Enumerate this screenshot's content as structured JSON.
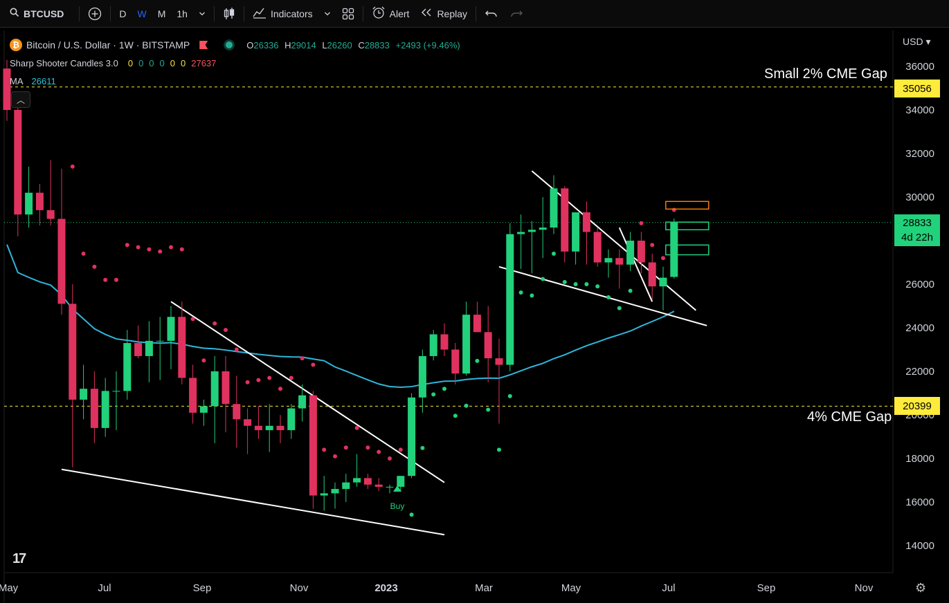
{
  "toolbar": {
    "symbol": "BTCUSD",
    "intervals": [
      "D",
      "W",
      "M",
      "1h"
    ],
    "active_interval": "W",
    "indicators_label": "Indicators",
    "alert_label": "Alert",
    "replay_label": "Replay"
  },
  "legend": {
    "title": "Bitcoin / U.S. Dollar · 1W · BITSTAMP",
    "ohlc": {
      "o_label": "O",
      "o": "26336",
      "h_label": "H",
      "h": "29014",
      "l_label": "L",
      "l": "26260",
      "c_label": "C",
      "c": "28833",
      "chg": "+2493 (+9.46%)"
    },
    "indicator1_name": "Sharp Shooter Candles 3.0",
    "indicator1_values": [
      "0",
      "0",
      "0",
      "0",
      "0",
      "0"
    ],
    "indicator1_last": "27637",
    "ma_label": "MA",
    "ma_value": "26611"
  },
  "price_axis": {
    "currency": "USD",
    "ticks": [
      "36000",
      "34000",
      "32000",
      "30000",
      "28000",
      "26000",
      "24000",
      "22000",
      "20000",
      "18000",
      "16000",
      "14000"
    ]
  },
  "time_axis": {
    "ticks": [
      "May",
      "Jul",
      "Sep",
      "Nov",
      "2023",
      "Mar",
      "May",
      "Jul",
      "Sep",
      "Nov"
    ]
  },
  "annotations": {
    "upper_gap_label": "Small 2% CME Gap",
    "upper_gap_price": "35056",
    "lower_gap_label": "4% CME Gap",
    "lower_gap_price": "20399",
    "current_price": "28833",
    "countdown": "4d 22h",
    "buy_label": "Buy"
  },
  "colors": {
    "up": "#22d17b",
    "down": "#e0325f",
    "ma": "#2fb7dc",
    "gap_tag": "#ffeb3b",
    "trendline": "#ffffff"
  },
  "chart_data": {
    "type": "candlestick",
    "interval": "1W",
    "ylim": [
      13000,
      37000
    ],
    "candles": [
      [
        35900,
        36300,
        33500,
        34000
      ],
      [
        34000,
        34100,
        28200,
        29200
      ],
      [
        29200,
        31400,
        28600,
        30200
      ],
      [
        30200,
        30600,
        28700,
        29400
      ],
      [
        29400,
        31700,
        28700,
        29000
      ],
      [
        29000,
        31300,
        24600,
        25100
      ],
      [
        25100,
        26000,
        17600,
        20700
      ],
      [
        20700,
        22300,
        19800,
        21200
      ],
      [
        21200,
        22000,
        18700,
        19400
      ],
      [
        19400,
        21700,
        19000,
        21100
      ],
      [
        21100,
        22000,
        19300,
        21100
      ],
      [
        21100,
        23900,
        20700,
        23300
      ],
      [
        23300,
        24100,
        22600,
        22700
      ],
      [
        22700,
        24300,
        21500,
        23400
      ],
      [
        23400,
        24500,
        21600,
        23400
      ],
      [
        23400,
        25000,
        22100,
        24500
      ],
      [
        24500,
        25200,
        21400,
        21700
      ],
      [
        21700,
        22300,
        19600,
        20100
      ],
      [
        20100,
        20700,
        19500,
        20400
      ],
      [
        20400,
        22700,
        18700,
        22000
      ],
      [
        22000,
        22700,
        19200,
        20500
      ],
      [
        20500,
        21800,
        18500,
        19800
      ],
      [
        19800,
        20300,
        18200,
        19500
      ],
      [
        19500,
        20400,
        18900,
        19300
      ],
      [
        19300,
        20500,
        18300,
        19500
      ],
      [
        19500,
        20000,
        18700,
        19300
      ],
      [
        19300,
        20500,
        18900,
        20300
      ],
      [
        20300,
        21400,
        19700,
        20900
      ],
      [
        20900,
        21100,
        15700,
        16300
      ],
      [
        16300,
        17200,
        15600,
        16400
      ],
      [
        16400,
        16900,
        15700,
        16600
      ],
      [
        16600,
        17300,
        16000,
        16900
      ],
      [
        16900,
        18200,
        16700,
        17100
      ],
      [
        17100,
        17300,
        16600,
        16800
      ],
      [
        16800,
        17100,
        16500,
        16700
      ],
      [
        16700,
        16800,
        16400,
        16700
      ],
      [
        16700,
        17200,
        16500,
        17200
      ],
      [
        17200,
        21000,
        17100,
        20800
      ],
      [
        20800,
        23000,
        20100,
        22700
      ],
      [
        22700,
        23900,
        22500,
        23700
      ],
      [
        23700,
        24200,
        22700,
        23000
      ],
      [
        23000,
        23300,
        21400,
        21900
      ],
      [
        21900,
        25200,
        21800,
        24600
      ],
      [
        24600,
        25200,
        23800,
        23800
      ],
      [
        23800,
        25000,
        21500,
        22600
      ],
      [
        22600,
        23500,
        19600,
        22300
      ],
      [
        22300,
        28800,
        22000,
        28300
      ],
      [
        28300,
        29200,
        26700,
        28400
      ],
      [
        28400,
        28900,
        26500,
        28500
      ],
      [
        28500,
        30000,
        27200,
        28600
      ],
      [
        28600,
        31000,
        28300,
        30400
      ],
      [
        30400,
        30500,
        27000,
        27500
      ],
      [
        27500,
        29300,
        26900,
        29300
      ],
      [
        29300,
        29800,
        26900,
        28400
      ],
      [
        28400,
        28600,
        26800,
        27000
      ],
      [
        27000,
        27600,
        26300,
        27200
      ],
      [
        27200,
        27600,
        25800,
        26900
      ],
      [
        26900,
        28400,
        26600,
        28000
      ],
      [
        28000,
        28400,
        26500,
        27000
      ],
      [
        27000,
        27400,
        25300,
        25900
      ],
      [
        25900,
        26800,
        24800,
        26300
      ],
      [
        26336,
        29014,
        26260,
        28833
      ]
    ]
  }
}
